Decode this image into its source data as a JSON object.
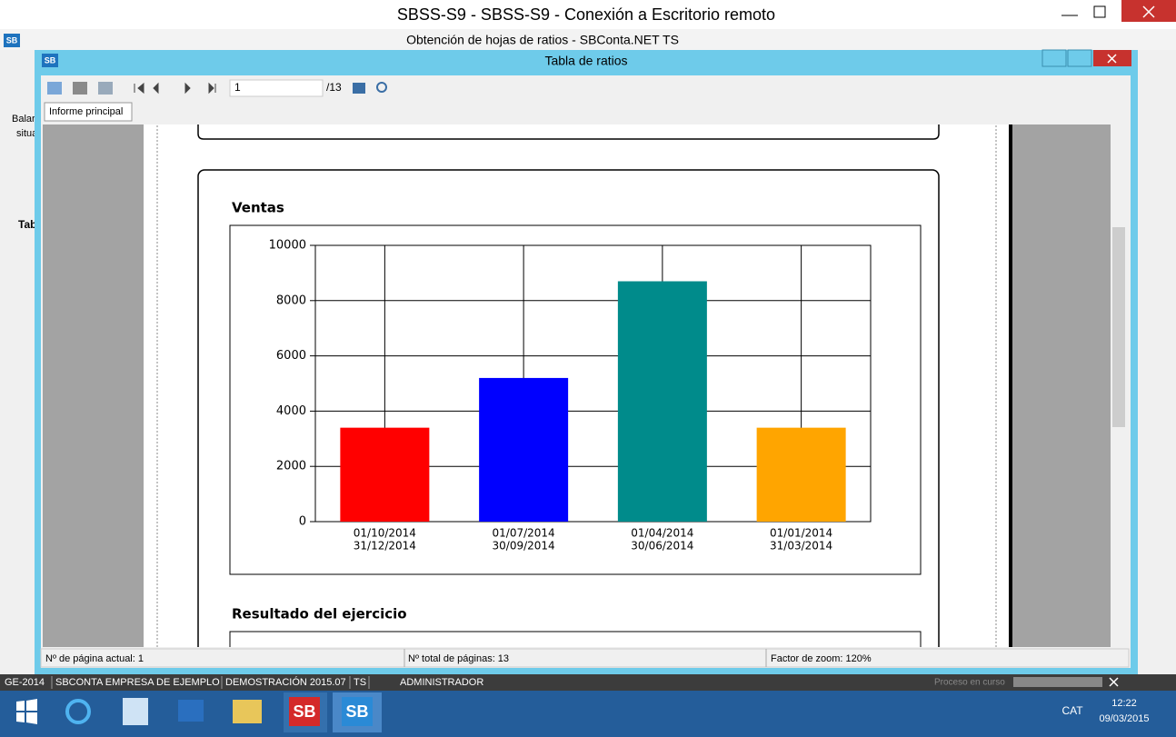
{
  "window": {
    "title": "SBSS-S9 - SBSS-S9 - Conexión a Escritorio remoto",
    "app_title": "Obtención de hojas de ratios - SBConta.NET TS",
    "app_logo": "SB"
  },
  "sidebar": {
    "items": [
      "Balar",
      "situa",
      "Tab"
    ]
  },
  "dialog": {
    "title": "Tabla de ratios",
    "logo": "SB",
    "page_input": "1",
    "page_total": "/13",
    "tab": "Informe principal",
    "section_title": "Resultado del ejercicio",
    "status": [
      "Nº de página actual: 1",
      "Nº total de páginas: 13",
      "Factor de zoom: 120%"
    ]
  },
  "status_bar": {
    "items": [
      "GE-2014",
      "SBCONTA EMPRESA DE EJEMPLO",
      "DEMOSTRACIÓN 2015.07",
      "TS",
      "ADMINISTRADOR"
    ],
    "progress": "Proceso en curso"
  },
  "taskbar": {
    "apps": [
      "SB",
      "SB"
    ],
    "language": "CAT",
    "time": "12:22",
    "date": "09/03/2015"
  },
  "chart_data": {
    "type": "bar",
    "title": "Ventas",
    "categories": [
      [
        "01/10/2014",
        "31/12/2014"
      ],
      [
        "01/07/2014",
        "30/09/2014"
      ],
      [
        "01/04/2014",
        "30/06/2014"
      ],
      [
        "01/01/2014",
        "31/03/2014"
      ]
    ],
    "values": [
      3400,
      5200,
      8700,
      3400
    ],
    "colors": [
      "#ff0000",
      "#0000ff",
      "#008b8b",
      "#ffa500"
    ],
    "ylim": [
      0,
      10000
    ],
    "yticks": [
      0,
      2000,
      4000,
      6000,
      8000,
      10000
    ],
    "grid": true
  }
}
